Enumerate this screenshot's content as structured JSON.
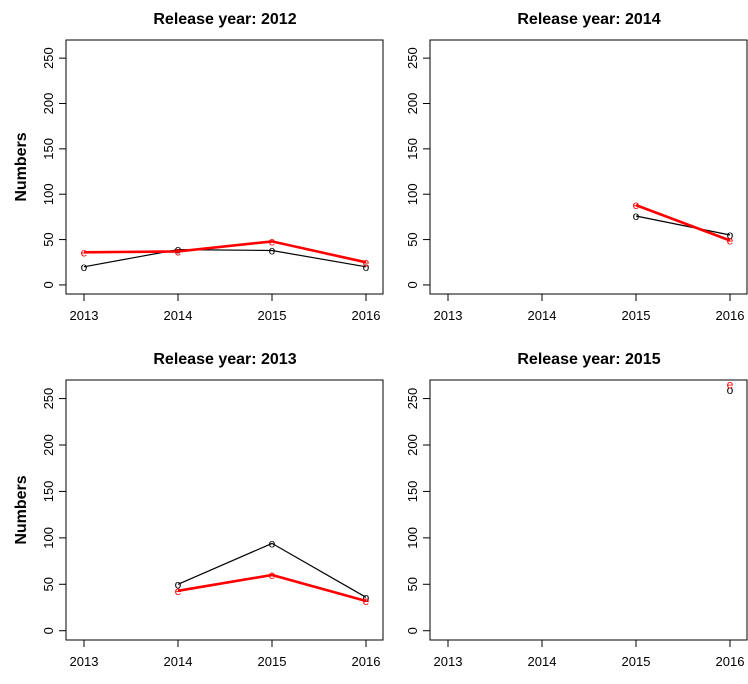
{
  "chart_data": [
    {
      "type": "line",
      "title": "Release year: 2012",
      "ylabel": "Numbers",
      "xlabel": "",
      "x": [
        2013,
        2014,
        2015,
        2016
      ],
      "ylim": [
        0,
        270
      ],
      "yticks": [
        0,
        50,
        100,
        150,
        200,
        250
      ],
      "series": [
        {
          "marker": "o",
          "color": "#000000",
          "values": [
            20,
            39,
            38,
            20
          ]
        },
        {
          "marker": "e",
          "color": "#ff0000",
          "values": [
            36,
            37,
            48,
            25
          ]
        }
      ]
    },
    {
      "type": "line",
      "title": "Release year: 2014",
      "ylabel": "",
      "xlabel": "",
      "x": [
        2013,
        2014,
        2015,
        2016
      ],
      "ylim": [
        0,
        270
      ],
      "yticks": [
        0,
        50,
        100,
        150,
        200,
        250
      ],
      "series": [
        {
          "marker": "o",
          "color": "#000000",
          "values": [
            null,
            null,
            76,
            55
          ]
        },
        {
          "marker": "e",
          "color": "#ff0000",
          "values": [
            null,
            null,
            88,
            49
          ]
        }
      ]
    },
    {
      "type": "line",
      "title": "Release year: 2013",
      "ylabel": "Numbers",
      "xlabel": "",
      "x": [
        2013,
        2014,
        2015,
        2016
      ],
      "ylim": [
        0,
        270
      ],
      "yticks": [
        0,
        50,
        100,
        150,
        200,
        250
      ],
      "series": [
        {
          "marker": "o",
          "color": "#000000",
          "values": [
            null,
            50,
            94,
            36
          ]
        },
        {
          "marker": "e",
          "color": "#ff0000",
          "values": [
            null,
            43,
            60,
            32
          ]
        }
      ]
    },
    {
      "type": "line",
      "title": "Release year: 2015",
      "ylabel": "",
      "xlabel": "",
      "x": [
        2013,
        2014,
        2015,
        2016
      ],
      "ylim": [
        0,
        270
      ],
      "yticks": [
        0,
        50,
        100,
        150,
        200,
        250
      ],
      "series": [
        {
          "marker": "o",
          "color": "#000000",
          "values": [
            null,
            null,
            null,
            259
          ]
        },
        {
          "marker": "e",
          "color": "#ff0000",
          "values": [
            null,
            null,
            null,
            265
          ]
        }
      ]
    }
  ]
}
